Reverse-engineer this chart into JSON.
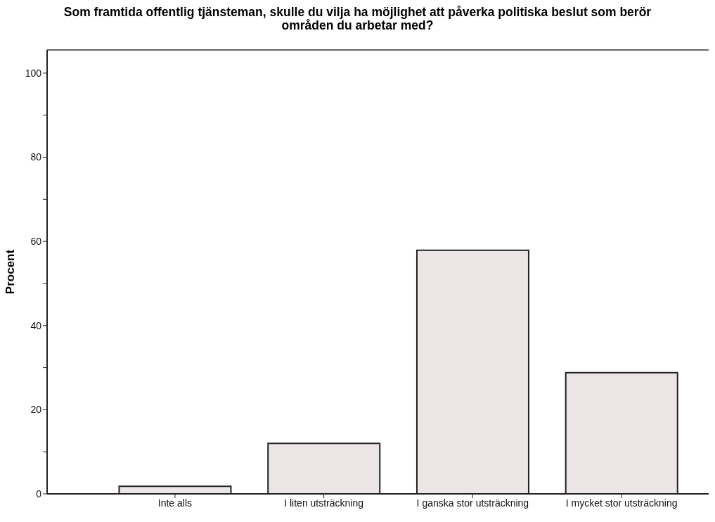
{
  "chart_data": {
    "type": "bar",
    "title": "Som framtida offentlig tjänsteman, skulle du vilja ha möjlighet att påverka politiska beslut som berör områden du arbetar med?",
    "ylabel": "Procent",
    "categories": [
      "Inte alls",
      "I liten utsträckning",
      "I ganska stor utsträckning",
      "I mycket stor utsträckning"
    ],
    "values": [
      1.8,
      12.0,
      57.9,
      28.8
    ],
    "color": "#ebe5e5",
    "ylim": [
      0,
      105.5
    ],
    "yticks": [
      0,
      {
        "value": 10,
        "label": null
      },
      20,
      {
        "value": 30,
        "label": null
      },
      40,
      {
        "value": 50,
        "label": null
      },
      60,
      {
        "value": 70,
        "label": null
      },
      80,
      {
        "value": 90,
        "label": null
      },
      100
    ],
    "grid": false
  }
}
